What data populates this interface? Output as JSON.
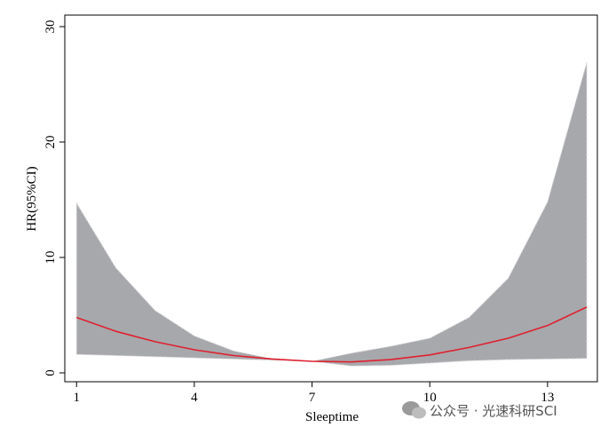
{
  "chart_data": {
    "type": "line",
    "x_label": "Sleeptime",
    "y_label": "HR(95%CI)",
    "x": [
      1,
      2,
      3,
      4,
      5,
      6,
      7,
      8,
      9,
      10,
      11,
      12,
      13,
      14
    ],
    "values": [
      4.8,
      3.6,
      2.7,
      2.0,
      1.5,
      1.2,
      1.0,
      0.95,
      1.15,
      1.55,
      2.2,
      3.0,
      4.1,
      5.7
    ],
    "ci_upper": [
      14.7,
      9.1,
      5.4,
      3.2,
      1.9,
      1.2,
      1.0,
      1.7,
      2.3,
      3.0,
      4.8,
      8.2,
      14.8,
      26.9
    ],
    "ci_lower": [
      1.6,
      1.5,
      1.4,
      1.3,
      1.2,
      1.1,
      1.0,
      0.6,
      0.65,
      0.85,
      1.05,
      1.15,
      1.2,
      1.25
    ],
    "line_color": "#e0202e",
    "band_color": "#a7a8ac",
    "xlim": [
      0.7,
      14.27
    ],
    "ylim": [
      -0.77,
      31
    ],
    "xticks": [
      1,
      4,
      7,
      10,
      13
    ],
    "yticks": [
      0,
      10,
      20,
      30
    ],
    "watermark": "公众号 · 光速科研SCI"
  }
}
